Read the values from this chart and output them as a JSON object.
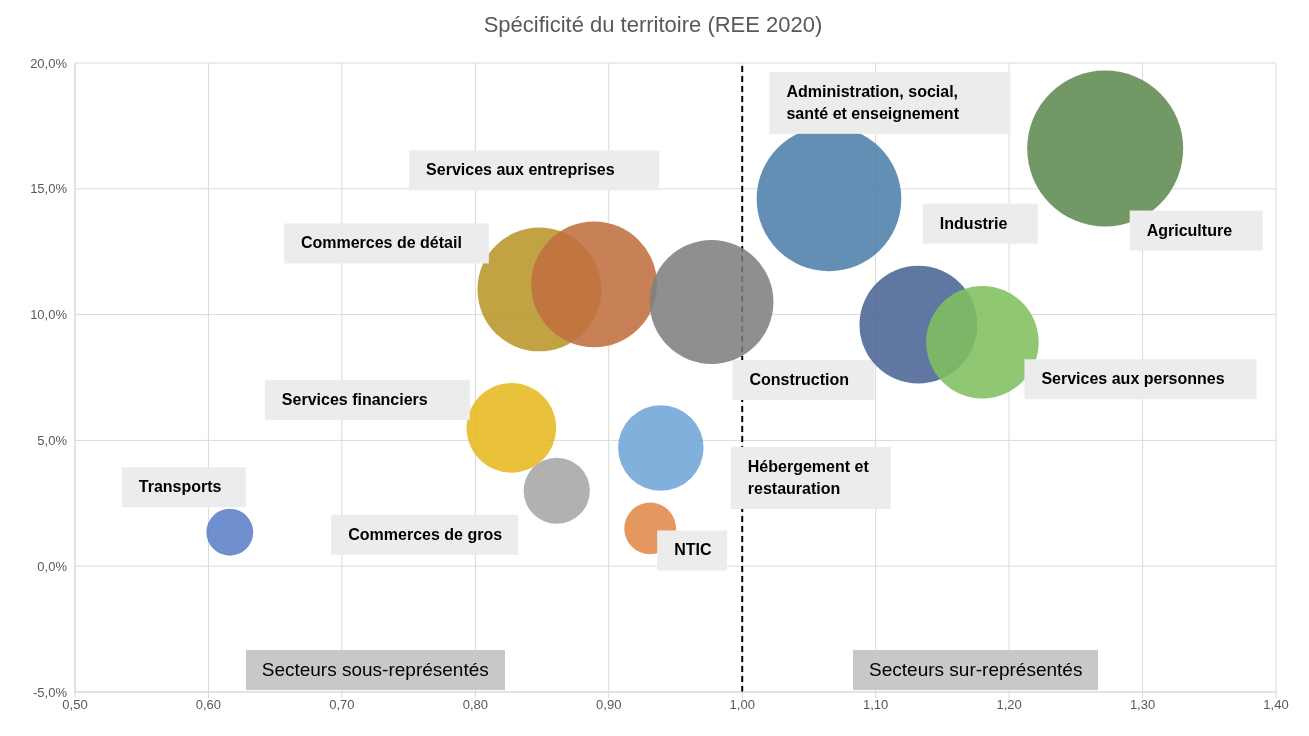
{
  "chart_data": {
    "type": "bubble",
    "title": "Spécificité du territoire (REE 2020)",
    "series": [
      {
        "name": "Agriculture",
        "color": "#5f8a50",
        "x": [
          1.272
        ],
        "values": [
          16.6
        ],
        "sizes": [
          1
        ]
      },
      {
        "name": "Administration, social, santé et enseignement",
        "color": "#4f7fab",
        "x": [
          1.065
        ],
        "values": [
          14.6
        ],
        "sizes": [
          0.86
        ]
      },
      {
        "name": "Commerces de détail",
        "color": "#b8962a",
        "x": [
          0.848
        ],
        "values": [
          11.0
        ],
        "sizes": [
          0.63
        ]
      },
      {
        "name": "Services aux entreprises",
        "color": "#c0703f",
        "x": [
          0.889
        ],
        "values": [
          11.2
        ],
        "sizes": [
          0.65
        ]
      },
      {
        "name": "Construction",
        "color": "#7f7f7f",
        "x": [
          0.977
        ],
        "values": [
          10.5
        ],
        "sizes": [
          0.63
        ]
      },
      {
        "name": "Industrie",
        "color": "#4a6494",
        "x": [
          1.132
        ],
        "values": [
          9.6
        ],
        "sizes": [
          0.57
        ]
      },
      {
        "name": "Services aux personnes",
        "color": "#7fbf5f",
        "x": [
          1.18
        ],
        "values": [
          8.9
        ],
        "sizes": [
          0.52
        ]
      },
      {
        "name": "Services financiers",
        "color": "#e6b820",
        "x": [
          0.827
        ],
        "values": [
          5.5
        ],
        "sizes": [
          0.33
        ]
      },
      {
        "name": "Hébergement et restauration",
        "color": "#6fa5d8",
        "x": [
          0.939
        ],
        "values": [
          4.7
        ],
        "sizes": [
          0.3
        ]
      },
      {
        "name": "Commerces de gros",
        "color": "#a6a6a6",
        "x": [
          0.861
        ],
        "values": [
          3.0
        ],
        "sizes": [
          0.18
        ]
      },
      {
        "name": "NTIC",
        "color": "#e08a4a",
        "x": [
          0.931
        ],
        "values": [
          1.5
        ],
        "sizes": [
          0.11
        ]
      },
      {
        "name": "Transports",
        "color": "#5b7fc8",
        "x": [
          0.616
        ],
        "values": [
          1.35
        ],
        "sizes": [
          0.09
        ]
      }
    ],
    "xlim": [
      0.5,
      1.4
    ],
    "xticks": [
      {
        "value": 0.5,
        "label": "0,50"
      },
      {
        "value": 0.6,
        "label": "0,60"
      },
      {
        "value": 0.7,
        "label": "0,70"
      },
      {
        "value": 0.8,
        "label": "0,80"
      },
      {
        "value": 0.9,
        "label": "0,90"
      },
      {
        "value": 1.0,
        "label": "1,00"
      },
      {
        "value": 1.1,
        "label": "1,10"
      },
      {
        "value": 1.2,
        "label": "1,20"
      },
      {
        "value": 1.3,
        "label": "1,30"
      },
      {
        "value": 1.4,
        "label": "1,40"
      }
    ],
    "ylim": [
      -5,
      20
    ],
    "yticks": [
      {
        "value": -5,
        "label": "-5,0%"
      },
      {
        "value": 0,
        "label": "0,0%"
      },
      {
        "value": 5,
        "label": "5,0%"
      },
      {
        "value": 10,
        "label": "10,0%"
      },
      {
        "value": 15,
        "label": "15,0%"
      },
      {
        "value": 20,
        "label": "20,0%"
      }
    ],
    "grid": true,
    "ref_lines": [
      {
        "axis": "x",
        "value": 1.0,
        "color": "#000000",
        "line_style": "dashed"
      }
    ],
    "annotations": [
      "Secteurs sous-représentés",
      "Secteurs sur-représentés"
    ]
  }
}
